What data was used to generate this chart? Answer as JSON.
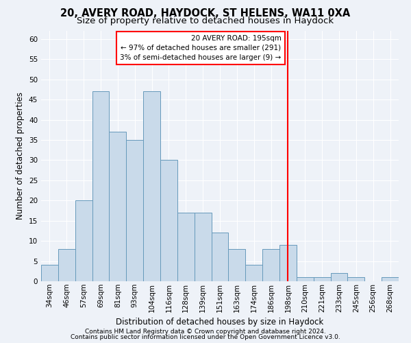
{
  "title": "20, AVERY ROAD, HAYDOCK, ST HELENS, WA11 0XA",
  "subtitle": "Size of property relative to detached houses in Haydock",
  "xlabel": "Distribution of detached houses by size in Haydock",
  "ylabel": "Number of detached properties",
  "footnote1": "Contains HM Land Registry data © Crown copyright and database right 2024.",
  "footnote2": "Contains public sector information licensed under the Open Government Licence v3.0.",
  "categories": [
    "34sqm",
    "46sqm",
    "57sqm",
    "69sqm",
    "81sqm",
    "93sqm",
    "104sqm",
    "116sqm",
    "128sqm",
    "139sqm",
    "151sqm",
    "163sqm",
    "174sqm",
    "186sqm",
    "198sqm",
    "210sqm",
    "221sqm",
    "233sqm",
    "245sqm",
    "256sqm",
    "268sqm"
  ],
  "values": [
    4,
    8,
    20,
    47,
    37,
    35,
    47,
    30,
    17,
    17,
    12,
    8,
    4,
    8,
    9,
    1,
    1,
    2,
    1,
    0,
    1
  ],
  "bar_color": "#c9daea",
  "bar_edge_color": "#6699bb",
  "vline_index": 14,
  "vline_color": "red",
  "annotation_text": "20 AVERY ROAD: 195sqm\n← 97% of detached houses are smaller (291)\n3% of semi-detached houses are larger (9) →",
  "annotation_box_color": "white",
  "annotation_box_edge_color": "red",
  "ylim": [
    0,
    62
  ],
  "yticks": [
    0,
    5,
    10,
    15,
    20,
    25,
    30,
    35,
    40,
    45,
    50,
    55,
    60
  ],
  "background_color": "#eef2f8",
  "title_fontsize": 10.5,
  "subtitle_fontsize": 9.5,
  "axis_label_fontsize": 8.5,
  "tick_fontsize": 7.5,
  "footnote_fontsize": 6.5,
  "annotation_fontsize": 7.5
}
